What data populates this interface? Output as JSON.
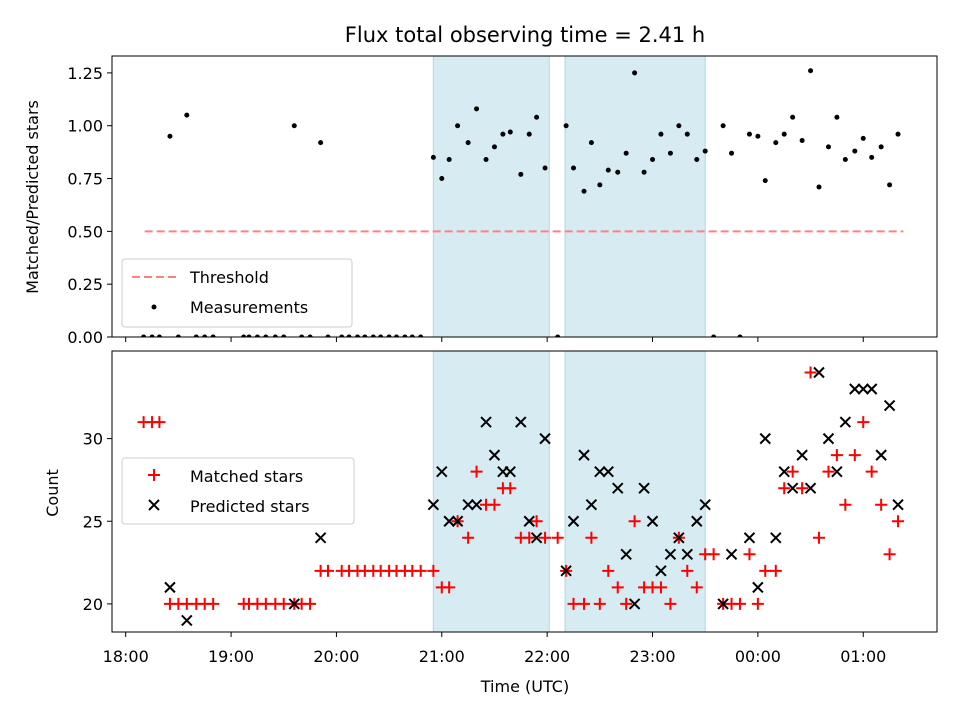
{
  "chart_data": [
    {
      "type": "scatter",
      "title": "Flux total observing time = 2.41 h",
      "xlabel": "",
      "ylabel": "Matched/Predicted stars",
      "x_unit": "hours since 18:00 UTC",
      "xlim": [
        17.87,
        25.7
      ],
      "ylim": [
        0,
        1.33
      ],
      "yticks": [
        "0.00",
        "0.25",
        "0.50",
        "0.75",
        "1.00",
        "1.25"
      ],
      "ytick_values": [
        0,
        0.25,
        0.5,
        0.75,
        1.0,
        1.25
      ],
      "shaded_spans": [
        [
          20.92,
          22.02
        ],
        [
          22.17,
          23.5
        ]
      ],
      "threshold": {
        "name": "Threshold",
        "y": 0.5,
        "x_range": [
          18.18,
          25.38
        ],
        "color": "#ff8080"
      },
      "legend": {
        "position": "lower-left",
        "entries": [
          "Threshold",
          "Measurements"
        ]
      },
      "series": [
        {
          "name": "Measurements",
          "color": "#000000",
          "points": [
            [
              18.17,
              0
            ],
            [
              18.25,
              0
            ],
            [
              18.32,
              0
            ],
            [
              18.42,
              0.95
            ],
            [
              18.5,
              0
            ],
            [
              18.58,
              1.05
            ],
            [
              18.67,
              0
            ],
            [
              18.75,
              0
            ],
            [
              18.83,
              0
            ],
            [
              19.12,
              0
            ],
            [
              19.17,
              0
            ],
            [
              19.25,
              0
            ],
            [
              19.33,
              0
            ],
            [
              19.42,
              0
            ],
            [
              19.5,
              0
            ],
            [
              19.6,
              1.0
            ],
            [
              19.67,
              0
            ],
            [
              19.75,
              0
            ],
            [
              19.85,
              0.92
            ],
            [
              19.92,
              0
            ],
            [
              20.05,
              0
            ],
            [
              20.12,
              0
            ],
            [
              20.2,
              0
            ],
            [
              20.27,
              0
            ],
            [
              20.35,
              0
            ],
            [
              20.42,
              0
            ],
            [
              20.5,
              0
            ],
            [
              20.57,
              0
            ],
            [
              20.65,
              0
            ],
            [
              20.72,
              0
            ],
            [
              20.8,
              0
            ],
            [
              20.92,
              0.85
            ],
            [
              21.0,
              0.75
            ],
            [
              21.07,
              0.84
            ],
            [
              21.15,
              1.0
            ],
            [
              21.25,
              0.92
            ],
            [
              21.33,
              1.08
            ],
            [
              21.42,
              0.84
            ],
            [
              21.5,
              0.9
            ],
            [
              21.58,
              0.96
            ],
            [
              21.65,
              0.97
            ],
            [
              21.75,
              0.77
            ],
            [
              21.83,
              0.96
            ],
            [
              21.9,
              1.04
            ],
            [
              21.98,
              0.8
            ],
            [
              22.1,
              0
            ],
            [
              22.18,
              1.0
            ],
            [
              22.25,
              0.8
            ],
            [
              22.35,
              0.69
            ],
            [
              22.42,
              0.92
            ],
            [
              22.5,
              0.72
            ],
            [
              22.58,
              0.79
            ],
            [
              22.67,
              0.78
            ],
            [
              22.75,
              0.87
            ],
            [
              22.83,
              1.25
            ],
            [
              22.92,
              0.78
            ],
            [
              23.0,
              0.84
            ],
            [
              23.08,
              0.96
            ],
            [
              23.17,
              0.87
            ],
            [
              23.25,
              1.0
            ],
            [
              23.33,
              0.96
            ],
            [
              23.42,
              0.84
            ],
            [
              23.5,
              0.88
            ],
            [
              23.58,
              0
            ],
            [
              23.67,
              1.0
            ],
            [
              23.75,
              0.87
            ],
            [
              23.83,
              0
            ],
            [
              23.92,
              0.96
            ],
            [
              24.0,
              0.95
            ],
            [
              24.07,
              0.74
            ],
            [
              24.17,
              0.92
            ],
            [
              24.25,
              0.96
            ],
            [
              24.33,
              1.04
            ],
            [
              24.42,
              0.93
            ],
            [
              24.5,
              1.26
            ],
            [
              24.58,
              0.71
            ],
            [
              24.67,
              0.9
            ],
            [
              24.75,
              1.04
            ],
            [
              24.83,
              0.84
            ],
            [
              24.92,
              0.88
            ],
            [
              25.0,
              0.94
            ],
            [
              25.08,
              0.85
            ],
            [
              25.17,
              0.9
            ],
            [
              25.25,
              0.72
            ],
            [
              25.33,
              0.96
            ]
          ]
        }
      ]
    },
    {
      "type": "scatter",
      "title": "",
      "xlabel": "Time (UTC)",
      "ylabel": "Count",
      "x_unit": "hours since 18:00 UTC",
      "xlim": [
        17.87,
        25.7
      ],
      "ylim": [
        18.3,
        35.3
      ],
      "xticks": [
        "18:00",
        "19:00",
        "20:00",
        "21:00",
        "22:00",
        "23:00",
        "00:00",
        "01:00"
      ],
      "xtick_values": [
        18,
        19,
        20,
        21,
        22,
        23,
        24,
        25
      ],
      "yticks": [
        "20",
        "25",
        "30"
      ],
      "ytick_values": [
        20,
        25,
        30
      ],
      "shaded_spans": [
        [
          20.92,
          22.02
        ],
        [
          22.17,
          23.5
        ]
      ],
      "legend": {
        "position": "center-left",
        "entries": [
          "Matched stars",
          "Predicted stars"
        ]
      },
      "series": [
        {
          "name": "Matched stars",
          "marker": "plus",
          "color": "#ff0000",
          "points": [
            [
              18.17,
              31
            ],
            [
              18.25,
              31
            ],
            [
              18.32,
              31
            ],
            [
              18.42,
              20
            ],
            [
              18.5,
              20
            ],
            [
              18.58,
              20
            ],
            [
              18.67,
              20
            ],
            [
              18.75,
              20
            ],
            [
              18.83,
              20
            ],
            [
              19.12,
              20
            ],
            [
              19.17,
              20
            ],
            [
              19.25,
              20
            ],
            [
              19.33,
              20
            ],
            [
              19.42,
              20
            ],
            [
              19.5,
              20
            ],
            [
              19.6,
              20
            ],
            [
              19.67,
              20
            ],
            [
              19.75,
              20
            ],
            [
              19.85,
              22
            ],
            [
              19.92,
              22
            ],
            [
              20.05,
              22
            ],
            [
              20.12,
              22
            ],
            [
              20.2,
              22
            ],
            [
              20.27,
              22
            ],
            [
              20.35,
              22
            ],
            [
              20.42,
              22
            ],
            [
              20.5,
              22
            ],
            [
              20.57,
              22
            ],
            [
              20.65,
              22
            ],
            [
              20.72,
              22
            ],
            [
              20.8,
              22
            ],
            [
              20.92,
              22
            ],
            [
              21.0,
              21
            ],
            [
              21.07,
              21
            ],
            [
              21.15,
              25
            ],
            [
              21.25,
              24
            ],
            [
              21.33,
              28
            ],
            [
              21.42,
              26
            ],
            [
              21.5,
              26
            ],
            [
              21.58,
              27
            ],
            [
              21.65,
              27
            ],
            [
              21.75,
              24
            ],
            [
              21.83,
              24
            ],
            [
              21.9,
              25
            ],
            [
              21.98,
              24
            ],
            [
              22.1,
              24
            ],
            [
              22.18,
              22
            ],
            [
              22.25,
              20
            ],
            [
              22.35,
              20
            ],
            [
              22.42,
              24
            ],
            [
              22.5,
              20
            ],
            [
              22.58,
              22
            ],
            [
              22.67,
              21
            ],
            [
              22.75,
              20
            ],
            [
              22.83,
              25
            ],
            [
              22.92,
              21
            ],
            [
              23.0,
              21
            ],
            [
              23.08,
              21
            ],
            [
              23.17,
              20
            ],
            [
              23.25,
              24
            ],
            [
              23.33,
              22
            ],
            [
              23.42,
              21
            ],
            [
              23.5,
              23
            ],
            [
              23.58,
              23
            ],
            [
              23.67,
              20
            ],
            [
              23.75,
              20
            ],
            [
              23.83,
              20
            ],
            [
              23.92,
              23
            ],
            [
              24.0,
              20
            ],
            [
              24.07,
              22
            ],
            [
              24.17,
              22
            ],
            [
              24.25,
              27
            ],
            [
              24.33,
              28
            ],
            [
              24.42,
              27
            ],
            [
              24.5,
              34
            ],
            [
              24.58,
              24
            ],
            [
              24.67,
              28
            ],
            [
              24.75,
              29
            ],
            [
              24.83,
              26
            ],
            [
              24.92,
              29
            ],
            [
              25.0,
              31
            ],
            [
              25.08,
              28
            ],
            [
              25.17,
              26
            ],
            [
              25.25,
              23
            ],
            [
              25.33,
              25
            ]
          ]
        },
        {
          "name": "Predicted stars",
          "marker": "x",
          "color": "#000000",
          "points": [
            [
              18.42,
              21
            ],
            [
              18.58,
              19
            ],
            [
              19.6,
              20
            ],
            [
              19.85,
              24
            ],
            [
              20.92,
              26
            ],
            [
              21.0,
              28
            ],
            [
              21.07,
              25
            ],
            [
              21.15,
              25
            ],
            [
              21.25,
              26
            ],
            [
              21.33,
              26
            ],
            [
              21.42,
              31
            ],
            [
              21.5,
              29
            ],
            [
              21.58,
              28
            ],
            [
              21.65,
              28
            ],
            [
              21.75,
              31
            ],
            [
              21.83,
              25
            ],
            [
              21.9,
              24
            ],
            [
              21.98,
              30
            ],
            [
              22.18,
              22
            ],
            [
              22.25,
              25
            ],
            [
              22.35,
              29
            ],
            [
              22.42,
              26
            ],
            [
              22.5,
              28
            ],
            [
              22.58,
              28
            ],
            [
              22.67,
              27
            ],
            [
              22.75,
              23
            ],
            [
              22.83,
              20
            ],
            [
              22.92,
              27
            ],
            [
              23.0,
              25
            ],
            [
              23.08,
              22
            ],
            [
              23.17,
              23
            ],
            [
              23.25,
              24
            ],
            [
              23.33,
              23
            ],
            [
              23.42,
              25
            ],
            [
              23.5,
              26
            ],
            [
              23.67,
              20
            ],
            [
              23.75,
              23
            ],
            [
              23.92,
              24
            ],
            [
              24.0,
              21
            ],
            [
              24.07,
              30
            ],
            [
              24.17,
              24
            ],
            [
              24.25,
              28
            ],
            [
              24.33,
              27
            ],
            [
              24.42,
              29
            ],
            [
              24.5,
              27
            ],
            [
              24.58,
              34
            ],
            [
              24.67,
              30
            ],
            [
              24.75,
              28
            ],
            [
              24.83,
              31
            ],
            [
              24.92,
              33
            ],
            [
              25.0,
              33
            ],
            [
              25.08,
              33
            ],
            [
              25.17,
              29
            ],
            [
              25.25,
              32
            ],
            [
              25.33,
              26
            ]
          ]
        }
      ]
    }
  ]
}
